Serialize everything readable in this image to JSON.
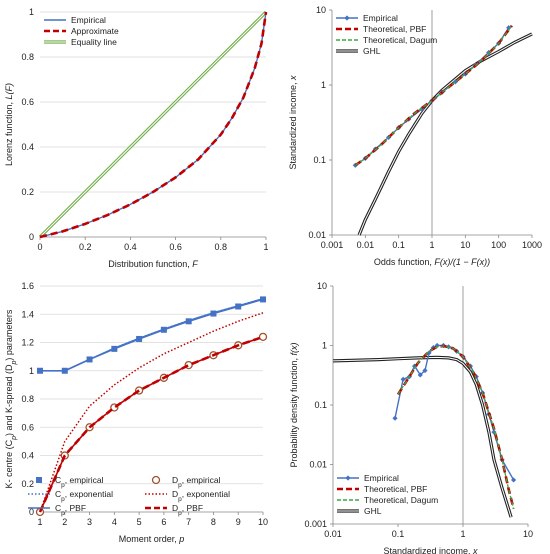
{
  "colors": {
    "blue": "#4472C4",
    "red": "#C00000",
    "green": "#70AD47",
    "darkgreen": "#38A844",
    "black": "#222222",
    "grid": "#D9D9D9"
  },
  "chart_data": [
    {
      "id": "lorenz",
      "type": "line",
      "xlabel_text": "Distribution function, ",
      "xlabel_var": "F",
      "ylabel_text": "Lorenz function, ",
      "ylabel_var": "L(F)",
      "xlim": [
        0,
        1
      ],
      "ylim": [
        0,
        1
      ],
      "xticks": [
        "0",
        "0.2",
        "0.4",
        "0.6",
        "0.8",
        "1"
      ],
      "yticks": [
        "0",
        "0.2",
        "0.4",
        "0.6",
        "0.8",
        "1"
      ],
      "grid": "horizontal",
      "legend_position": "top-left",
      "x": [
        0,
        0.1,
        0.2,
        0.3,
        0.4,
        0.5,
        0.6,
        0.7,
        0.8,
        0.85,
        0.9,
        0.95,
        0.98,
        1
      ],
      "series": [
        {
          "name": "Empirical",
          "style": "solid",
          "color": "blue",
          "values": [
            0,
            0.025,
            0.058,
            0.098,
            0.145,
            0.2,
            0.265,
            0.345,
            0.455,
            0.53,
            0.62,
            0.75,
            0.86,
            1
          ]
        },
        {
          "name": "Approximate",
          "style": "dashed",
          "color": "red",
          "values": [
            0,
            0.025,
            0.058,
            0.098,
            0.145,
            0.2,
            0.265,
            0.345,
            0.455,
            0.53,
            0.62,
            0.75,
            0.86,
            1
          ]
        },
        {
          "name": "Equality line",
          "style": "double",
          "color": "green",
          "values": [
            0,
            0.1,
            0.2,
            0.3,
            0.4,
            0.5,
            0.6,
            0.7,
            0.8,
            0.85,
            0.9,
            0.95,
            0.98,
            1
          ]
        }
      ]
    },
    {
      "id": "income-odds",
      "type": "line",
      "xscale": "log",
      "yscale": "log",
      "xlabel_text": "Odds function, ",
      "xlabel_var": "F(x)/(1 − F(x))",
      "ylabel_text": "Standardized income, ",
      "ylabel_var": "x",
      "xlim": [
        0.001,
        1000
      ],
      "ylim": [
        0.01,
        10
      ],
      "xticks": [
        "0.001",
        "0.01",
        "0.1",
        "1",
        "10",
        "100",
        "1000"
      ],
      "xtick_values": [
        0.001,
        0.01,
        0.1,
        1,
        10,
        100,
        1000
      ],
      "yticks": [
        "0.01",
        "0.1",
        "1",
        "10"
      ],
      "ytick_values": [
        0.01,
        0.1,
        1,
        10
      ],
      "grid": "none",
      "legend_position": "top-left",
      "series": [
        {
          "name": "Empirical",
          "style": "marker-diamond",
          "color": "blue",
          "x": [
            0.005,
            0.01,
            0.02,
            0.05,
            0.1,
            0.2,
            0.5,
            1,
            2,
            5,
            10,
            20,
            50,
            100,
            200
          ],
          "values": [
            0.085,
            0.105,
            0.14,
            0.2,
            0.27,
            0.35,
            0.48,
            0.62,
            0.8,
            1.1,
            1.4,
            1.85,
            2.7,
            3.6,
            5.8
          ]
        },
        {
          "name": "Theoretical, PBF",
          "style": "dashed",
          "color": "red",
          "x": [
            0.005,
            0.01,
            0.03,
            0.1,
            0.3,
            1,
            3,
            10,
            30,
            100,
            250
          ],
          "values": [
            0.085,
            0.105,
            0.16,
            0.27,
            0.42,
            0.62,
            0.92,
            1.4,
            2.1,
            3.6,
            6.2
          ]
        },
        {
          "name": "Theoretical, Dagum",
          "style": "dashed-fine",
          "color": "darkgreen",
          "x": [
            0.005,
            0.01,
            0.03,
            0.1,
            0.3,
            1,
            3,
            10,
            30,
            100,
            250
          ],
          "values": [
            0.085,
            0.105,
            0.16,
            0.27,
            0.42,
            0.62,
            0.92,
            1.4,
            2.1,
            3.6,
            6.2
          ]
        },
        {
          "name": "GHL",
          "style": "double-black",
          "color": "black",
          "x": [
            0.0065,
            0.01,
            0.02,
            0.05,
            0.1,
            0.2,
            0.5,
            1,
            2,
            5,
            10,
            30,
            100,
            300,
            1000
          ],
          "values": [
            0.01,
            0.016,
            0.03,
            0.07,
            0.13,
            0.22,
            0.42,
            0.62,
            0.85,
            1.2,
            1.55,
            2.1,
            2.8,
            3.7,
            4.8
          ]
        }
      ]
    },
    {
      "id": "kcentre",
      "type": "line",
      "xlabel_text": "Moment order, ",
      "xlabel_var": "p",
      "ylabel_html": "K- centre (C<tspan baseline-shift='sub' font-size='7'>p</tspan>) and  K-spread (D<tspan baseline-shift='sub' font-size='7'>p</tspan>)  parameters",
      "xlim": [
        1,
        10
      ],
      "ylim": [
        0,
        1.6
      ],
      "xticks": [
        "1",
        "2",
        "3",
        "4",
        "5",
        "6",
        "7",
        "8",
        "9",
        "10"
      ],
      "yticks": [
        "0",
        "0.2",
        "0.4",
        "0.6",
        "0.8",
        "1",
        "1.2",
        "1.4",
        "1.6"
      ],
      "grid": "horizontal",
      "legend_position": "bottom",
      "x": [
        1,
        2,
        3,
        4,
        5,
        6,
        7,
        8,
        9,
        10
      ],
      "series": [
        {
          "name": "Cp, empirical",
          "legend_main": "C",
          "legend_sub": "p",
          "legend_rest": ", empirical",
          "style": "marker-square",
          "color": "blue",
          "values": [
            1.0,
            1.0,
            1.08,
            1.155,
            1.225,
            1.29,
            1.35,
            1.405,
            1.455,
            1.505
          ]
        },
        {
          "name": "Cp, exponential",
          "legend_main": "C",
          "legend_sub": "p",
          "legend_rest": ", exponential",
          "style": "dotted",
          "color": "blue",
          "values": [
            1.0,
            1.0,
            1.08,
            1.16,
            1.23,
            1.295,
            1.355,
            1.41,
            1.46,
            1.51
          ]
        },
        {
          "name": "Cp, PBF",
          "legend_main": "C",
          "legend_sub": "p",
          "legend_rest": ", PBF",
          "style": "solid",
          "color": "blue",
          "values": [
            1.0,
            1.0,
            1.08,
            1.16,
            1.23,
            1.295,
            1.355,
            1.41,
            1.46,
            1.51
          ]
        },
        {
          "name": "Dp, empirical",
          "legend_main": "D",
          "legend_sub": "p",
          "legend_rest": ", empirical",
          "style": "marker-circle",
          "color": "red",
          "values": [
            0.0,
            0.4,
            0.6,
            0.74,
            0.86,
            0.95,
            1.04,
            1.11,
            1.18,
            1.24
          ]
        },
        {
          "name": "Dp, exponential",
          "legend_main": "D",
          "legend_sub": "p",
          "legend_rest": ", exponential",
          "style": "dotted",
          "color": "red",
          "values": [
            0.0,
            0.5,
            0.75,
            0.9,
            1.02,
            1.12,
            1.2,
            1.28,
            1.35,
            1.41
          ]
        },
        {
          "name": "Dp, PBF",
          "legend_main": "D",
          "legend_sub": "p",
          "legend_rest": ", PBF",
          "style": "dashed",
          "color": "red",
          "values": [
            0.0,
            0.4,
            0.6,
            0.74,
            0.86,
            0.95,
            1.04,
            1.11,
            1.18,
            1.24
          ]
        }
      ]
    },
    {
      "id": "pdf",
      "type": "line",
      "xscale": "log",
      "yscale": "log",
      "xlabel_text": "Standardized income, ",
      "xlabel_var": "x",
      "ylabel_text": "Probability density function, ",
      "ylabel_var": "f(x)",
      "xlim": [
        0.01,
        10
      ],
      "ylim": [
        0.001,
        10
      ],
      "xticks": [
        "0.01",
        "0.1",
        "1",
        "10"
      ],
      "xtick_values": [
        0.01,
        0.1,
        1,
        10
      ],
      "yticks": [
        "0.001",
        "0.01",
        "0.1",
        "1",
        "10"
      ],
      "ytick_values": [
        0.001,
        0.01,
        0.1,
        1,
        10
      ],
      "grid": "none",
      "legend_position": "bottom-left",
      "series": [
        {
          "name": "Empirical",
          "style": "marker-diamond",
          "color": "blue",
          "x": [
            0.09,
            0.12,
            0.15,
            0.18,
            0.22,
            0.26,
            0.3,
            0.35,
            0.4,
            0.5,
            0.6,
            0.8,
            1.0,
            1.3,
            1.6,
            2.0,
            2.5,
            3.0,
            4.0,
            6.0
          ],
          "values": [
            0.06,
            0.27,
            0.3,
            0.45,
            0.32,
            0.38,
            0.75,
            0.92,
            1.0,
            1.0,
            0.95,
            0.8,
            0.65,
            0.45,
            0.3,
            0.16,
            0.07,
            0.035,
            0.012,
            0.0055
          ]
        },
        {
          "name": "Theoretical, PBF",
          "style": "dashed",
          "color": "red",
          "x": [
            0.1,
            0.15,
            0.2,
            0.3,
            0.4,
            0.5,
            0.7,
            1.0,
            1.5,
            2.0,
            3.0,
            4.0,
            5.0,
            6.0
          ],
          "values": [
            0.15,
            0.3,
            0.5,
            0.8,
            0.95,
            0.98,
            0.9,
            0.65,
            0.33,
            0.16,
            0.04,
            0.012,
            0.004,
            0.0018
          ]
        },
        {
          "name": "Theoretical, Dagum",
          "style": "dashed-fine",
          "color": "darkgreen",
          "x": [
            0.1,
            0.15,
            0.2,
            0.3,
            0.4,
            0.5,
            0.7,
            1.0,
            1.5,
            2.0,
            3.0,
            4.0,
            5.0,
            6.0
          ],
          "values": [
            0.15,
            0.3,
            0.5,
            0.8,
            0.95,
            0.98,
            0.9,
            0.65,
            0.33,
            0.16,
            0.04,
            0.012,
            0.004,
            0.0018
          ]
        },
        {
          "name": "GHL",
          "style": "double-black",
          "color": "black",
          "x": [
            0.01,
            0.05,
            0.1,
            0.2,
            0.4,
            0.6,
            0.8,
            1.0,
            1.3,
            1.6,
            2.0,
            2.5,
            3.0,
            4.0,
            5.5
          ],
          "values": [
            0.55,
            0.58,
            0.6,
            0.62,
            0.63,
            0.62,
            0.58,
            0.5,
            0.36,
            0.22,
            0.1,
            0.035,
            0.012,
            0.004,
            0.0013
          ]
        }
      ]
    }
  ]
}
